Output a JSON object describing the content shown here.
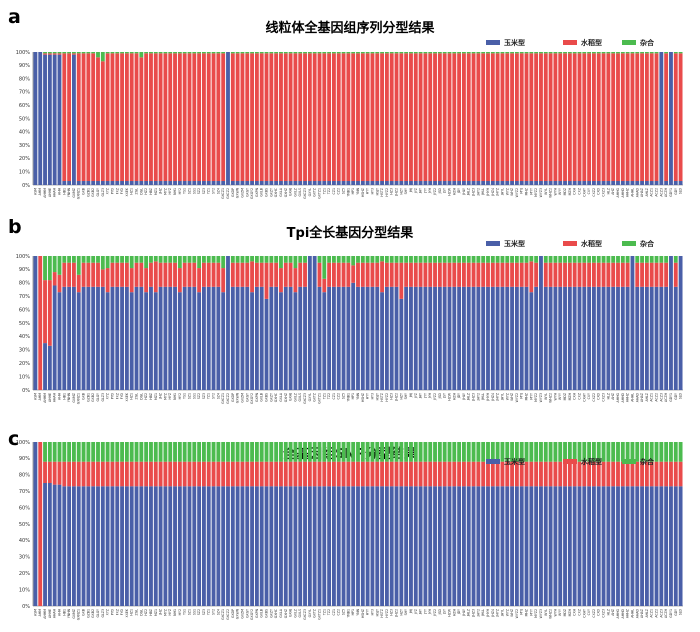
{
  "chart_data": [
    {
      "type": "bar",
      "stacked": true,
      "panel_label": "a",
      "title": "线粒体全基因组序列分型结果",
      "legend": [
        "玉米型",
        "水稻型",
        "杂合"
      ],
      "legend_position": "top-right",
      "ylim": [
        0,
        100
      ],
      "yticks": [
        "0%",
        "10%",
        "20%",
        "30%",
        "40%",
        "50%",
        "60%",
        "70%",
        "80%",
        "90%",
        "100%"
      ],
      "grid": false,
      "colors": {
        "maize": "#4a5fa8",
        "rice": "#e94b4b",
        "hybrid": "#4cbb4f"
      },
      "n_bars": 135,
      "series": [
        {
          "name": "玉米型",
          "values": {
            "default": 3,
            "overrides": {
              "0": 100,
              "1": 100,
              "2": 98,
              "3": 98,
              "4": 98,
              "5": 98,
              "6": 3,
              "7": 3,
              "8": 98,
              "9": 3,
              "10": 3,
              "11": 3,
              "40": 100,
              "130": 100,
              "131": 3,
              "132": 100
            }
          }
        },
        {
          "name": "水稻型",
          "values": {
            "default": 96,
            "overrides": {
              "0": 0,
              "1": 0,
              "2": 1,
              "3": 1,
              "4": 1,
              "5": 1,
              "8": 1,
              "13": 93,
              "14": 90,
              "22": 93,
              "40": 0,
              "130": 0,
              "132": 0
            }
          }
        },
        {
          "name": "杂合",
          "values": "remainder"
        }
      ]
    },
    {
      "type": "bar",
      "stacked": true,
      "panel_label": "b",
      "title": "Tpi全长基因分型结果",
      "legend": [
        "玉米型",
        "水稻型",
        "杂合"
      ],
      "legend_position": "top-right",
      "ylim": [
        0,
        100
      ],
      "yticks": [
        "0%",
        "10%",
        "20%",
        "30%",
        "40%",
        "50%",
        "60%",
        "70%",
        "80%",
        "90%",
        "100%"
      ],
      "grid": false,
      "colors": {
        "maize": "#4a5fa8",
        "rice": "#e94b4b",
        "hybrid": "#4cbb4f"
      },
      "n_bars": 135,
      "series": [
        {
          "name": "玉米型",
          "values": [
            100,
            0,
            35,
            33,
            78,
            73,
            77,
            77,
            77,
            73,
            77,
            77,
            77,
            77,
            77,
            73,
            77,
            77,
            77,
            77,
            73,
            77,
            77,
            73,
            77,
            73,
            77,
            77,
            77,
            77,
            73,
            77,
            77,
            77,
            73,
            77,
            77,
            77,
            77,
            73,
            100,
            77,
            77,
            77,
            77,
            73,
            77,
            77,
            68,
            77,
            77,
            73,
            77,
            77,
            73,
            77,
            77,
            100,
            100,
            77,
            73,
            77,
            77,
            77,
            77,
            77,
            80,
            77,
            77,
            77,
            77,
            77,
            73,
            77,
            77,
            77,
            68,
            77,
            77,
            77,
            77,
            77,
            77,
            77,
            77,
            77,
            77,
            77,
            77,
            77,
            77,
            77,
            77,
            77,
            77,
            77,
            77,
            77,
            77,
            77,
            77,
            77,
            77,
            73,
            77,
            100,
            77,
            77,
            77,
            77,
            77,
            77,
            77,
            77,
            77,
            77,
            77,
            77,
            77,
            77,
            77,
            77,
            77,
            77,
            100,
            77,
            77,
            77,
            77,
            77,
            77,
            77,
            100,
            77,
            100
          ]
        },
        {
          "name": "水稻型",
          "values": [
            0,
            100,
            47,
            49,
            10,
            13,
            18,
            18,
            18,
            13,
            18,
            18,
            18,
            18,
            13,
            18,
            18,
            18,
            18,
            18,
            18,
            18,
            18,
            18,
            18,
            23,
            18,
            18,
            18,
            18,
            18,
            18,
            18,
            18,
            18,
            18,
            18,
            18,
            18,
            18,
            0,
            18,
            18,
            18,
            18,
            23,
            18,
            18,
            27,
            18,
            18,
            18,
            18,
            18,
            18,
            18,
            18,
            0,
            0,
            18,
            10,
            18,
            18,
            18,
            18,
            18,
            13,
            18,
            18,
            18,
            18,
            18,
            23,
            18,
            18,
            18,
            27,
            18,
            18,
            18,
            18,
            18,
            18,
            18,
            18,
            18,
            18,
            18,
            18,
            18,
            18,
            18,
            18,
            18,
            18,
            18,
            18,
            18,
            18,
            18,
            18,
            18,
            18,
            23,
            18,
            0,
            18,
            18,
            18,
            18,
            18,
            18,
            18,
            18,
            18,
            18,
            18,
            18,
            18,
            18,
            18,
            18,
            18,
            18,
            0,
            18,
            18,
            18,
            18,
            18,
            18,
            18,
            0,
            18,
            0
          ]
        },
        {
          "name": "杂合",
          "values": "remainder"
        }
      ]
    },
    {
      "type": "bar",
      "stacked": true,
      "panel_label": "c",
      "title": "全基因组SNP分型结果",
      "legend": [
        "玉米型",
        "水稻型",
        "杂合"
      ],
      "legend_position": "top-right",
      "ylim": [
        0,
        100
      ],
      "yticks": [
        "0%",
        "10%",
        "20%",
        "30%",
        "40%",
        "50%",
        "60%",
        "70%",
        "80%",
        "90%",
        "100%"
      ],
      "grid": false,
      "colors": {
        "maize": "#4a5fa8",
        "rice": "#e94b4b",
        "hybrid": "#4cbb4f"
      },
      "n_bars": 135,
      "series": [
        {
          "name": "玉米型",
          "values": {
            "default": 73,
            "overrides": {
              "0": 100,
              "1": 0,
              "2": 75,
              "3": 75,
              "4": 74,
              "5": 74
            }
          }
        },
        {
          "name": "水稻型",
          "values": {
            "default": 15,
            "overrides": {
              "0": 0,
              "1": 100,
              "2": 13,
              "3": 13,
              "4": 14,
              "5": 14
            }
          }
        },
        {
          "name": "杂合",
          "values": "remainder"
        }
      ]
    }
  ],
  "x_labels": [
    "ASM",
    "AHM",
    "AHHM",
    "AHHE",
    "AHAH",
    "AHH",
    "HB1",
    "YNHN",
    "GXMZ",
    "GXNZ1",
    "GXB",
    "GZB1",
    "GXB2",
    "GLGY",
    "GLZ3",
    "XYZ",
    "PYD",
    "FXZ",
    "FYD",
    "XXEK",
    "HZ1",
    "ZGL",
    "DGL",
    "HZ2",
    "HBZ",
    "MZ1",
    "JHZ",
    "MYZ",
    "HYZ",
    "NH1",
    "HY2",
    "YS1",
    "SZ1",
    "SS1",
    "SZ2",
    "SZ3",
    "YZ1",
    "SY2",
    "SZ4",
    "GXCZ1",
    "GXCZ2",
    "GXDP",
    "GXWN",
    "GXZM",
    "GXGY",
    "GXGY2",
    "GXPN",
    "GXLB",
    "GXBS",
    "GXZY",
    "GXHC",
    "GXLA",
    "GXHZ",
    "GXHJ",
    "GXLZ",
    "GXLS",
    "GXCZ3",
    "GXYL",
    "GXTZ",
    "GXTZ1",
    "TZ1",
    "TZ2",
    "CZ1",
    "CZ2",
    "SZ5",
    "YNB1",
    "HP1",
    "YNN",
    "HSHZ",
    "HYY",
    "HY3",
    "HSJY",
    "HSTZ",
    "HYZ2",
    "HZ3",
    "JHZ2",
    "HZY",
    "SHY",
    "JHJ",
    "JYZ",
    "JHY",
    "JYY",
    "JYH",
    "JYZ2",
    "JSD",
    "JSY",
    "HZW",
    "HZH",
    "JDY",
    "JHLY",
    "JHLZ",
    "JHZ3",
    "JHY2",
    "JHLL",
    "JHYH",
    "JHZ4",
    "JHYZ",
    "JHYL",
    "WYZ",
    "WHZ",
    "WYZ2",
    "MYJ",
    "MHZ",
    "MYY",
    "MYZ2",
    "WYZ3",
    "WYL",
    "WHZ2",
    "WYH",
    "WYY",
    "MDZ",
    "MZH",
    "CXH",
    "CXZ",
    "CXHY",
    "CXY",
    "CXZ2",
    "CXD",
    "CXZ3",
    "HLZ",
    "AHZ",
    "AHHG",
    "AHHD",
    "AHHZ",
    "AHHL",
    "AHAD",
    "AHAZ",
    "AHLZ",
    "ACZ1",
    "ACZ2",
    "ACZ3",
    "ACZH",
    "GDY1",
    "GDY",
    "SLD"
  ]
}
